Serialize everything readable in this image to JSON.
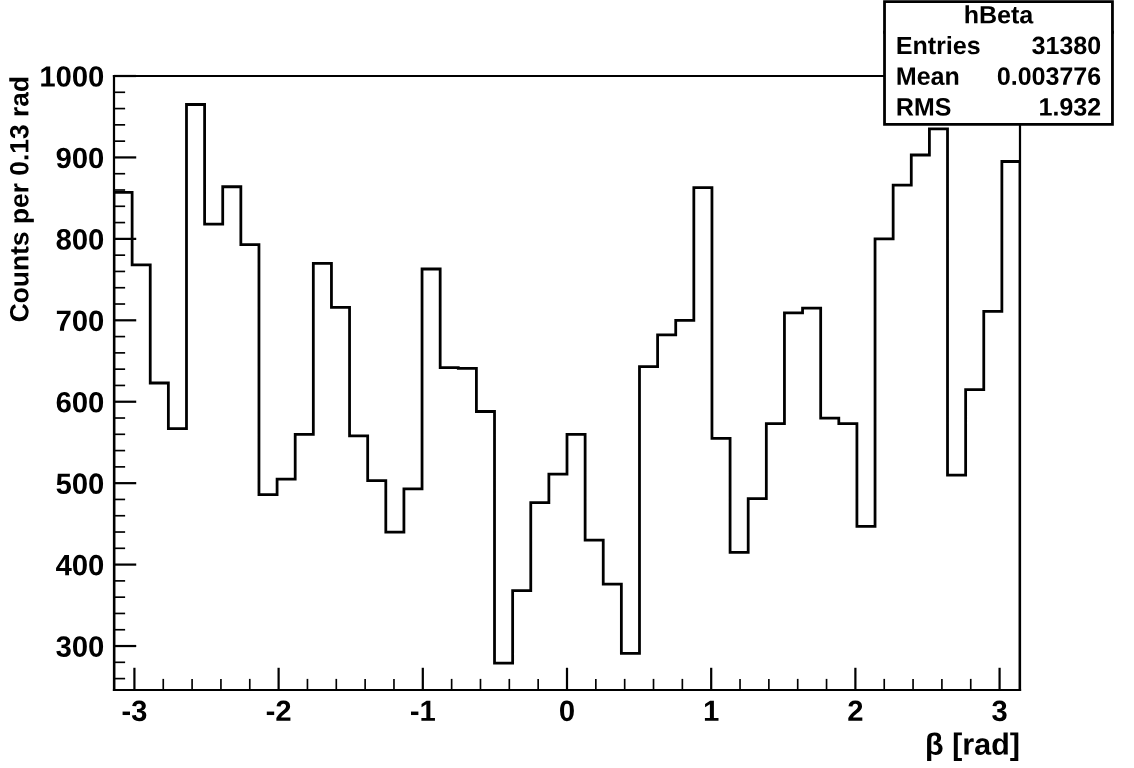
{
  "chart_data": {
    "type": "histogram",
    "xlabel": "β [rad]",
    "ylabel": "Counts per 0.13 rad",
    "bins": [
      -3.1416,
      -3.0159,
      -2.8903,
      -2.7646,
      -2.6389,
      -2.5133,
      -2.3876,
      -2.2619,
      -2.1363,
      -2.0106,
      -1.885,
      -1.7593,
      -1.6336,
      -1.508,
      -1.3823,
      -1.2566,
      -1.131,
      -1.0053,
      -0.8796,
      -0.754,
      -0.6283,
      -0.5027,
      -0.377,
      -0.2513,
      -0.1257,
      0,
      0.1257,
      0.2513,
      0.377,
      0.5027,
      0.6283,
      0.754,
      0.8796,
      1.0053,
      1.131,
      1.2566,
      1.3823,
      1.508,
      1.6336,
      1.7593,
      1.885,
      2.0106,
      2.1363,
      2.2619,
      2.3876,
      2.5133,
      2.6389,
      2.7646,
      2.8903,
      3.0159,
      3.1416
    ],
    "values": [
      857,
      768,
      623,
      567,
      965,
      818,
      864,
      793,
      486,
      505,
      560,
      770,
      716,
      558,
      503,
      440,
      493,
      763,
      642,
      641,
      588,
      279,
      368,
      476,
      511,
      560,
      430,
      376,
      291,
      643,
      682,
      700,
      863,
      555,
      415,
      481,
      573,
      709,
      715,
      580,
      573,
      447,
      800,
      866,
      903,
      935,
      510,
      615,
      711,
      895
    ],
    "color": "#000000",
    "xlim": [
      -3.1416,
      3.1416
    ],
    "ylim": [
      246,
      1000
    ],
    "xticks": [
      -3,
      -2,
      -1,
      0,
      1,
      2,
      3
    ],
    "yticks": [
      300,
      400,
      500,
      600,
      700,
      800,
      900,
      1000
    ],
    "grid": false,
    "legend": false,
    "annotations": [
      "hBeta",
      "Entries",
      "31380",
      "Mean",
      "0.003776",
      "RMS",
      "1.932"
    ]
  }
}
